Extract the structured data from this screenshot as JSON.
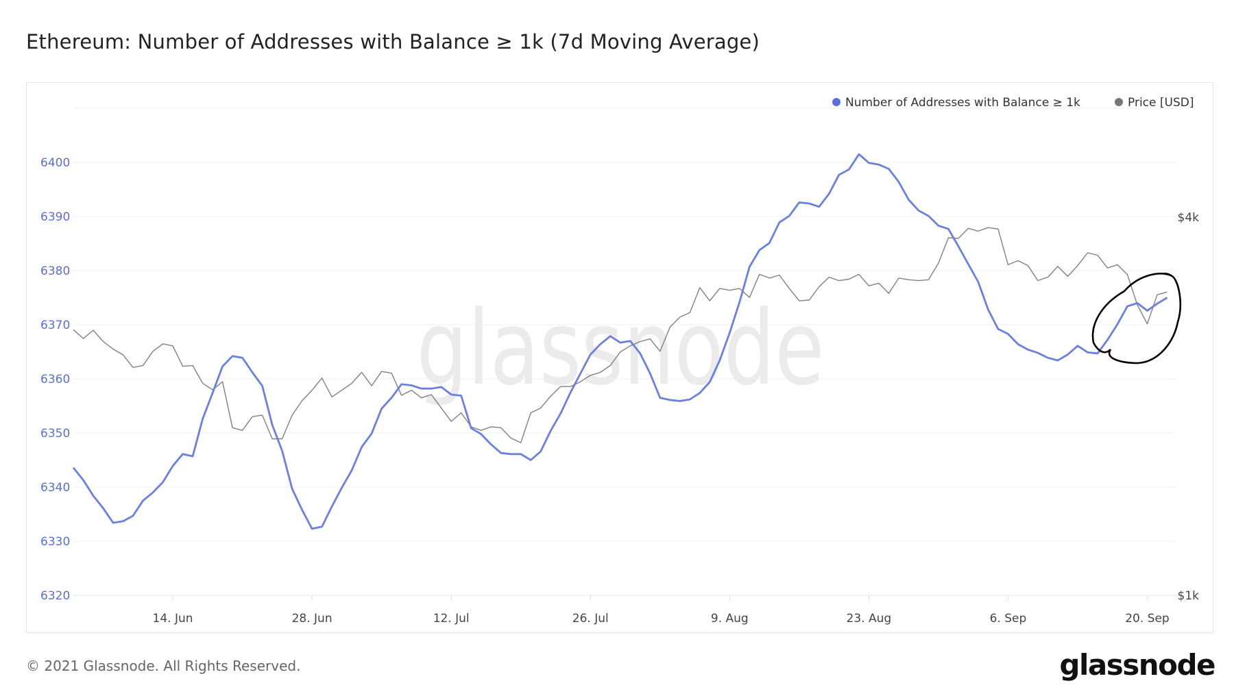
{
  "title": "Ethereum: Number of Addresses with Balance ≥ 1k (7d Moving Average)",
  "footer": {
    "copyright": "© 2021 Glassnode. All Rights Reserved.",
    "logo": "glassnode"
  },
  "watermark": "glassnode",
  "chart_data": {
    "type": "line",
    "title": "Ethereum: Number of Addresses with Balance ≥ 1k (7d Moving Average)",
    "grid": true,
    "legend_position": "top-right",
    "xlim": [
      "2021-06-04",
      "2021-09-23"
    ],
    "x_ticks": [
      {
        "date": "2021-06-14",
        "label": "14. Jun"
      },
      {
        "date": "2021-06-28",
        "label": "28. Jun"
      },
      {
        "date": "2021-07-12",
        "label": "12. Jul"
      },
      {
        "date": "2021-07-26",
        "label": "26. Jul"
      },
      {
        "date": "2021-08-09",
        "label": "9. Aug"
      },
      {
        "date": "2021-08-23",
        "label": "23. Aug"
      },
      {
        "date": "2021-09-06",
        "label": "6. Sep"
      },
      {
        "date": "2021-09-20",
        "label": "20. Sep"
      }
    ],
    "y_left": {
      "ylim": [
        6320,
        6410
      ],
      "ticks": [
        6320,
        6330,
        6340,
        6350,
        6360,
        6370,
        6380,
        6390,
        6400
      ],
      "color": "#5b6fd8"
    },
    "y_right": {
      "scale": "log",
      "ylim": [
        1000,
        4000
      ],
      "ticks": [
        {
          "value": 1000,
          "label": "$1k"
        },
        {
          "value": 4000,
          "label": "$4k"
        }
      ]
    },
    "start_date": "2021-06-04",
    "series": [
      {
        "name": "Number of Addresses with Balance ≥ 1k",
        "axis": "left",
        "color": "#6a7fe3",
        "values": [
          6343.6,
          6341.3,
          6338.4,
          6336.1,
          6333.4,
          6333.7,
          6334.7,
          6337.5,
          6339,
          6340.9,
          6343.9,
          6346.1,
          6345.7,
          6352.6,
          6357.4,
          6362.3,
          6364.2,
          6363.9,
          6361.2,
          6358.7,
          6351.5,
          6346.7,
          6339.7,
          6335.8,
          6332.3,
          6332.7,
          6336.4,
          6339.9,
          6343.1,
          6347.4,
          6349.9,
          6354.5,
          6356.5,
          6359,
          6358.8,
          6358.2,
          6358.2,
          6358.5,
          6357.1,
          6356.9,
          6350.9,
          6349.8,
          6347.9,
          6346.3,
          6346.1,
          6346.1,
          6345,
          6346.6,
          6350.4,
          6353.6,
          6357.5,
          6361,
          6364.5,
          6366.4,
          6367.9,
          6366.7,
          6367,
          6364.7,
          6361,
          6356.5,
          6356.1,
          6355.9,
          6356.2,
          6357.4,
          6359.4,
          6363.4,
          6368.5,
          6374.2,
          6380.7,
          6383.8,
          6385.1,
          6388.9,
          6390.1,
          6392.6,
          6392.4,
          6391.8,
          6394.2,
          6397.7,
          6398.7,
          6401.5,
          6399.9,
          6399.6,
          6398.8,
          6396.4,
          6393.1,
          6391.1,
          6390.1,
          6388.3,
          6387.7,
          6384.5,
          6381.2,
          6377.9,
          6372.8,
          6369.2,
          6368.3,
          6366.4,
          6365.4,
          6364.8,
          6363.9,
          6363.4,
          6364.5,
          6366.1,
          6364.9,
          6364.7,
          6367.2,
          6370.1,
          6373.4,
          6374,
          6372.6,
          6373.9,
          6375
        ]
      },
      {
        "name": "Price [USD]",
        "axis": "right",
        "color": "#808080",
        "values": [
          2648,
          2564,
          2643,
          2536,
          2466,
          2415,
          2306,
          2322,
          2446,
          2514,
          2496,
          2316,
          2322,
          2176,
          2125,
          2188,
          1849,
          1831,
          1925,
          1936,
          1775,
          1775,
          1936,
          2041,
          2121,
          2218,
          2070,
          2121,
          2176,
          2265,
          2156,
          2272,
          2258,
          2082,
          2121,
          2063,
          2087,
          1987,
          1892,
          1953,
          1855,
          1831,
          1855,
          1849,
          1780,
          1750,
          1953,
          1987,
          2075,
          2150,
          2150,
          2188,
          2240,
          2265,
          2322,
          2440,
          2496,
          2536,
          2560,
          2446,
          2673,
          2773,
          2820,
          3090,
          2944,
          3080,
          3060,
          3080,
          2980,
          3244,
          3200,
          3235,
          3080,
          2944,
          2952,
          3100,
          3210,
          3170,
          3187,
          3244,
          3110,
          3140,
          3025,
          3200,
          3180,
          3170,
          3180,
          3380,
          3710,
          3700,
          3840,
          3800,
          3850,
          3830,
          3360,
          3410,
          3350,
          3170,
          3210,
          3340,
          3220,
          3350,
          3510,
          3480,
          3320,
          3360,
          3240,
          2900,
          2705,
          3010,
          3040
        ]
      }
    ]
  }
}
